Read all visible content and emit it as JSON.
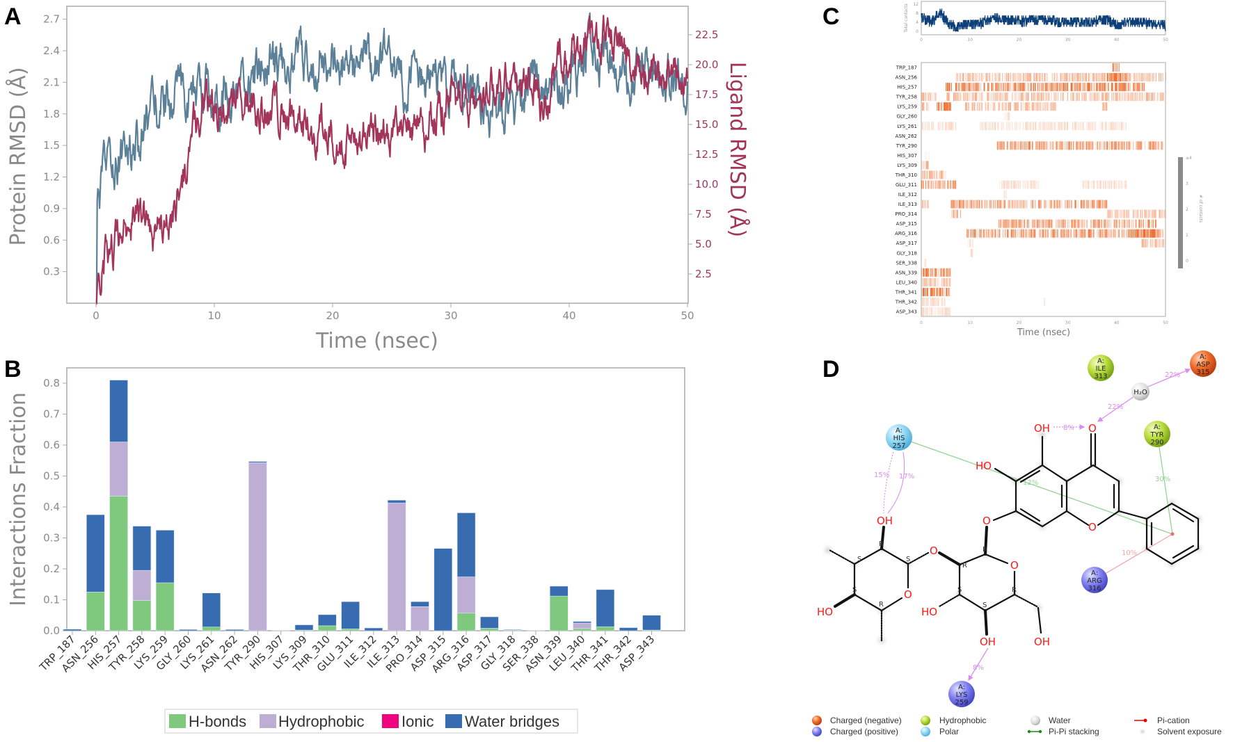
{
  "panels": {
    "a": "A",
    "b": "B",
    "c": "C",
    "d": "D"
  },
  "colors": {
    "protein": "#5b8097",
    "ligand": "#a3345a",
    "hbond": "#7fc97f",
    "hydrophobic": "#beaed4",
    "ionic": "#f0027f",
    "water": "#386cb0",
    "heat": "#ee6a2a",
    "contacts": "#0d3f78"
  },
  "chart_data": [
    {
      "type": "line",
      "xlabel": "Time (nsec)",
      "ylabel": "Protein RMSD (Å)",
      "y2label": "Ligand RMSD (Å)",
      "xlim": [
        -2.5,
        50
      ],
      "ylim": [
        0,
        2.82
      ],
      "y2lim": [
        0,
        24.9
      ],
      "xticks": [
        "0",
        "10",
        "20",
        "30",
        "40",
        "50"
      ],
      "yticks": [
        "0.3",
        "0.6",
        "0.9",
        "1.2",
        "1.5",
        "1.8",
        "2.1",
        "2.4",
        "2.7"
      ],
      "y2ticks": [
        "2.5",
        "5.0",
        "7.5",
        "10.0",
        "12.5",
        "15.0",
        "17.5",
        "20.0",
        "22.5"
      ],
      "series": [
        {
          "name": "Protein RMSD",
          "axis": "left",
          "x_step_ns": 1,
          "values": [
            0.9,
            1.3,
            1.4,
            1.5,
            1.55,
            1.85,
            1.95,
            1.95,
            2.0,
            2.0,
            2.0,
            2.0,
            2.05,
            2.1,
            2.15,
            2.2,
            2.3,
            2.3,
            2.25,
            2.3,
            2.25,
            2.3,
            2.2,
            2.25,
            2.3,
            2.2,
            2.1,
            2.2,
            2.1,
            2.15,
            2.05,
            2.05,
            2.0,
            1.85,
            1.8,
            1.85,
            2.0,
            2.1,
            2.0,
            2.0,
            2.1,
            2.35,
            2.4,
            2.3,
            2.2,
            2.15,
            2.2,
            2.15,
            2.2,
            2.15,
            2.15
          ]
        },
        {
          "name": "Ligand RMSD",
          "axis": "right",
          "x_step_ns": 1,
          "values": [
            1.5,
            4.4,
            5.0,
            6.4,
            7.5,
            5.7,
            6.0,
            9.6,
            13.9,
            16.2,
            17.2,
            17.1,
            17.0,
            16.8,
            16.5,
            16.2,
            15.8,
            15.3,
            14.9,
            14.4,
            13.9,
            13.8,
            13.7,
            13.8,
            13.9,
            13.9,
            14.2,
            14.6,
            14.9,
            16.0,
            17.5,
            17.2,
            16.9,
            17.8,
            18.3,
            18.8,
            18.5,
            18.2,
            15.5,
            19.5,
            20.8,
            21.5,
            22.1,
            22.8,
            21.5,
            20.1,
            19.4,
            18.8,
            19.5,
            19.3,
            19.2
          ]
        }
      ]
    },
    {
      "type": "bar",
      "stacked": true,
      "ylabel": "Interactions Fraction",
      "ylim": [
        0,
        0.85
      ],
      "yticks": [
        "0.0",
        "0.1",
        "0.2",
        "0.3",
        "0.4",
        "0.5",
        "0.6",
        "0.7",
        "0.8"
      ],
      "categories": [
        "TRP_187",
        "ASN_256",
        "HIS_257",
        "TYR_258",
        "LYS_259",
        "GLY_260",
        "LYS_261",
        "ASN_262",
        "TYR_290",
        "HIS_307",
        "LYS_309",
        "THR_310",
        "GLU_311",
        "ILE_312",
        "ILE_313",
        "PRO_314",
        "ASP_315",
        "ARG_316",
        "ASP_317",
        "GLY_318",
        "SER_338",
        "ASN_339",
        "LEU_340",
        "THR_341",
        "THR_342",
        "ASP_343"
      ],
      "series": [
        {
          "name": "H-bonds",
          "values": [
            0,
            0.125,
            0.435,
            0.098,
            0.155,
            0,
            0.012,
            0,
            0,
            0,
            0.002,
            0.016,
            0.006,
            0,
            0,
            0,
            0,
            0.057,
            0.008,
            0.002,
            0,
            0.112,
            0.007,
            0.013,
            0,
            0.002
          ]
        },
        {
          "name": "Hydrophobic",
          "values": [
            0,
            0,
            0.175,
            0.097,
            0,
            0,
            0,
            0,
            0.543,
            0,
            0,
            0,
            0,
            0,
            0.413,
            0.078,
            0,
            0.117,
            0,
            0,
            0,
            0,
            0.018,
            0,
            0,
            0
          ]
        },
        {
          "name": "Ionic",
          "values": [
            0,
            0,
            0,
            0,
            0,
            0,
            0,
            0,
            0,
            0,
            0,
            0,
            0,
            0,
            0,
            0,
            0,
            0,
            0,
            0,
            0,
            0,
            0,
            0,
            0,
            0
          ]
        },
        {
          "name": "Water bridges",
          "values": [
            0.005,
            0.25,
            0.2,
            0.143,
            0.17,
            0.004,
            0.11,
            0.004,
            0.004,
            0.001,
            0.017,
            0.036,
            0.088,
            0.009,
            0.009,
            0.016,
            0.266,
            0.207,
            0.037,
            0.002,
            0.001,
            0.032,
            0.005,
            0.12,
            0.01,
            0.048
          ]
        }
      ],
      "legend": [
        "H-bonds",
        "Hydrophobic",
        "Ionic",
        "Water bridges"
      ],
      "legend_position": "bottom"
    },
    {
      "type": "heatmap",
      "xlabel": "Time (nsec)",
      "xticks": [
        "0",
        "10",
        "20",
        "30",
        "40",
        "50"
      ],
      "top": {
        "ylabel": "Total contacts",
        "yticks": [
          "0",
          "4",
          "8",
          "12"
        ],
        "x_step_ns": 1,
        "values": [
          6,
          5,
          4,
          6,
          8,
          5,
          3,
          2,
          3,
          3,
          3,
          3,
          3,
          5,
          5,
          6,
          5,
          5,
          5,
          5,
          5,
          4,
          5,
          5,
          5,
          5,
          5,
          5,
          4,
          4,
          4,
          4,
          4,
          4,
          4,
          4,
          5,
          5,
          5,
          4,
          3,
          3,
          4,
          4,
          4,
          4,
          4,
          3,
          3,
          3,
          2
        ]
      },
      "residues": [
        "TRP_187",
        "ASN_256",
        "HIS_257",
        "TYR_258",
        "LYS_259",
        "GLY_260",
        "LYS_261",
        "ASN_262",
        "TYR_290",
        "HIS_307",
        "LYS_309",
        "THR_310",
        "GLU_311",
        "ILE_312",
        "ILE_313",
        "PRO_314",
        "ASP_315",
        "ARG_316",
        "ASP_317",
        "GLY_318",
        "SER_338",
        "ASN_339",
        "LEU_340",
        "THR_341",
        "THR_342",
        "ASP_343"
      ],
      "contact_segments_ns": [
        [
          [
            39,
            40.5,
            3
          ]
        ],
        [
          [
            7,
            50,
            1
          ],
          [
            38,
            42,
            3
          ]
        ],
        [
          [
            5,
            46,
            2
          ]
        ],
        [
          [
            0,
            3,
            1
          ],
          [
            5,
            50,
            1
          ]
        ],
        [
          [
            0,
            1.5,
            1
          ],
          [
            3,
            6,
            3
          ],
          [
            9,
            28,
            1
          ],
          [
            37,
            38,
            1
          ]
        ],
        [
          [
            17,
            18,
            0.5
          ]
        ],
        [
          [
            0,
            7,
            0.5
          ],
          [
            12,
            42,
            0.5
          ]
        ],
        [],
        [
          [
            15.5,
            49.5,
            1.5
          ]
        ],
        [
          [
            0.5,
            1.5,
            0.3
          ]
        ],
        [
          [
            0,
            1.5,
            1
          ]
        ],
        [
          [
            0,
            5,
            1
          ]
        ],
        [
          [
            0,
            7,
            1.5
          ],
          [
            16,
            24,
            0.5
          ],
          [
            33,
            42,
            0.5
          ]
        ],
        [
          [
            16.5,
            17.5,
            0.5
          ]
        ],
        [
          [
            0,
            1.5,
            1
          ],
          [
            6,
            38,
            1.5
          ]
        ],
        [
          [
            6,
            8,
            1
          ],
          [
            38,
            50,
            1
          ]
        ],
        [
          [
            15.5,
            48,
            1.5
          ]
        ],
        [
          [
            9,
            50,
            1.5
          ],
          [
            43,
            48,
            3
          ]
        ],
        [
          [
            9.5,
            10.5,
            0.5
          ],
          [
            45,
            50,
            1
          ]
        ],
        [
          [
            10,
            10.5,
            0.5
          ]
        ],
        [
          [
            0.5,
            1,
            0.3
          ]
        ],
        [
          [
            0,
            6,
            2.5
          ]
        ],
        [
          [
            0,
            6,
            1
          ]
        ],
        [
          [
            0,
            6,
            2.5
          ]
        ],
        [
          [
            0,
            5,
            0.5
          ],
          [
            25,
            25.5,
            0.5
          ]
        ],
        [
          [
            0,
            6,
            0.5
          ]
        ]
      ],
      "colorbar": {
        "label": "# of contacts",
        "ticks": [
          "0",
          "1",
          "2",
          "3",
          "≥4"
        ]
      }
    }
  ],
  "diagram": {
    "residues": [
      {
        "chain": "A:",
        "name": "ILE",
        "num": "313",
        "type": "hydrophobic"
      },
      {
        "chain": "A:",
        "name": "ASP",
        "num": "315",
        "type": "negative"
      },
      {
        "chain": "A:",
        "name": "TYR",
        "num": "290",
        "type": "hydrophobic"
      },
      {
        "chain": "A:",
        "name": "HIS",
        "num": "257",
        "type": "polar"
      },
      {
        "chain": "A:",
        "name": "ARG",
        "num": "316",
        "type": "positive"
      },
      {
        "chain": "A:",
        "name": "LYS",
        "num": "259",
        "type": "positive"
      }
    ],
    "water": "H₂O",
    "atoms": {
      "oh": "OH",
      "ho": "HO",
      "o": "O",
      "r": "R",
      "s": "S"
    },
    "interactions": {
      "his_pipi": "12%",
      "tyr_pipi": "30%",
      "arg_pication": "10%",
      "intramolecular_hbond": "8%",
      "water_ligand": "22%",
      "water_asp": "22%",
      "his_oh_1": "15%",
      "his_oh_2": "17%",
      "lys_oh": "8%"
    },
    "legend": [
      "Charged (negative)",
      "Charged (positive)",
      "Hydrophobic",
      "Polar",
      "Water",
      "Pi-Pi stacking",
      "Pi-cation",
      "Solvent exposure"
    ]
  }
}
